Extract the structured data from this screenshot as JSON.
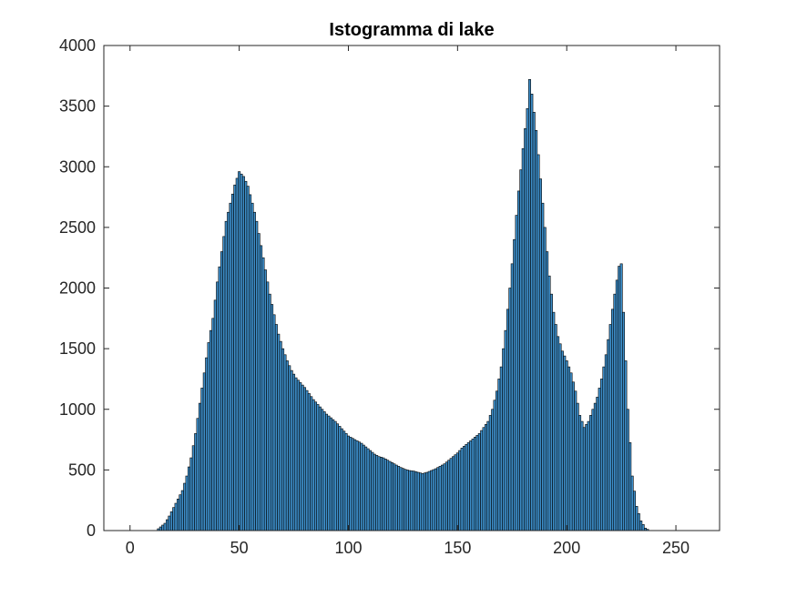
{
  "chart_data": {
    "type": "bar",
    "title": "Istogramma di lake",
    "xlabel": "",
    "ylabel": "",
    "xlim": [
      -12,
      270
    ],
    "ylim": [
      0,
      4000
    ],
    "x_ticks": [
      0,
      50,
      100,
      150,
      200,
      250
    ],
    "y_ticks": [
      0,
      500,
      1000,
      1500,
      2000,
      2500,
      3000,
      3500,
      4000
    ],
    "x_tick_labels": [
      "0",
      "50",
      "100",
      "150",
      "200",
      "250"
    ],
    "y_tick_labels": [
      "0",
      "500",
      "1000",
      "1500",
      "2000",
      "2500",
      "3000",
      "3500",
      "4000"
    ],
    "bar_color": "#3d8ec9",
    "edge_color": "#000000",
    "grid": false,
    "legend": "none",
    "anchors": [
      [
        0,
        0
      ],
      [
        12,
        0
      ],
      [
        14,
        30
      ],
      [
        16,
        60
      ],
      [
        18,
        120
      ],
      [
        20,
        190
      ],
      [
        22,
        260
      ],
      [
        24,
        330
      ],
      [
        26,
        450
      ],
      [
        28,
        600
      ],
      [
        30,
        800
      ],
      [
        32,
        1050
      ],
      [
        34,
        1300
      ],
      [
        36,
        1550
      ],
      [
        38,
        1750
      ],
      [
        40,
        2050
      ],
      [
        42,
        2300
      ],
      [
        44,
        2550
      ],
      [
        46,
        2700
      ],
      [
        48,
        2850
      ],
      [
        50,
        2960
      ],
      [
        52,
        2920
      ],
      [
        54,
        2840
      ],
      [
        56,
        2700
      ],
      [
        58,
        2550
      ],
      [
        60,
        2350
      ],
      [
        62,
        2150
      ],
      [
        64,
        1950
      ],
      [
        66,
        1780
      ],
      [
        68,
        1620
      ],
      [
        70,
        1500
      ],
      [
        72,
        1400
      ],
      [
        74,
        1320
      ],
      [
        76,
        1260
      ],
      [
        78,
        1220
      ],
      [
        80,
        1180
      ],
      [
        82,
        1130
      ],
      [
        84,
        1080
      ],
      [
        86,
        1040
      ],
      [
        88,
        1000
      ],
      [
        90,
        960
      ],
      [
        92,
        930
      ],
      [
        94,
        900
      ],
      [
        96,
        860
      ],
      [
        98,
        820
      ],
      [
        100,
        780
      ],
      [
        102,
        760
      ],
      [
        104,
        740
      ],
      [
        106,
        720
      ],
      [
        108,
        690
      ],
      [
        110,
        660
      ],
      [
        112,
        630
      ],
      [
        114,
        610
      ],
      [
        116,
        600
      ],
      [
        118,
        580
      ],
      [
        120,
        560
      ],
      [
        122,
        540
      ],
      [
        124,
        520
      ],
      [
        126,
        505
      ],
      [
        128,
        495
      ],
      [
        130,
        490
      ],
      [
        132,
        480
      ],
      [
        134,
        470
      ],
      [
        136,
        480
      ],
      [
        138,
        495
      ],
      [
        140,
        510
      ],
      [
        142,
        530
      ],
      [
        144,
        550
      ],
      [
        146,
        580
      ],
      [
        148,
        610
      ],
      [
        150,
        640
      ],
      [
        152,
        680
      ],
      [
        154,
        710
      ],
      [
        156,
        740
      ],
      [
        158,
        770
      ],
      [
        160,
        800
      ],
      [
        162,
        850
      ],
      [
        164,
        900
      ],
      [
        166,
        1000
      ],
      [
        168,
        1150
      ],
      [
        170,
        1350
      ],
      [
        172,
        1650
      ],
      [
        174,
        2000
      ],
      [
        176,
        2400
      ],
      [
        178,
        2800
      ],
      [
        180,
        3150
      ],
      [
        182,
        3480
      ],
      [
        183,
        3720
      ],
      [
        184,
        3600
      ],
      [
        186,
        3300
      ],
      [
        188,
        2900
      ],
      [
        190,
        2500
      ],
      [
        192,
        2100
      ],
      [
        194,
        1800
      ],
      [
        196,
        1600
      ],
      [
        198,
        1480
      ],
      [
        200,
        1400
      ],
      [
        202,
        1300
      ],
      [
        204,
        1150
      ],
      [
        206,
        950
      ],
      [
        208,
        850
      ],
      [
        210,
        900
      ],
      [
        212,
        1000
      ],
      [
        214,
        1100
      ],
      [
        216,
        1250
      ],
      [
        218,
        1450
      ],
      [
        220,
        1700
      ],
      [
        222,
        1950
      ],
      [
        224,
        2180
      ],
      [
        225,
        2200
      ],
      [
        226,
        1800
      ],
      [
        228,
        1000
      ],
      [
        230,
        450
      ],
      [
        232,
        200
      ],
      [
        234,
        80
      ],
      [
        236,
        20
      ],
      [
        238,
        0
      ],
      [
        255,
        0
      ]
    ]
  }
}
